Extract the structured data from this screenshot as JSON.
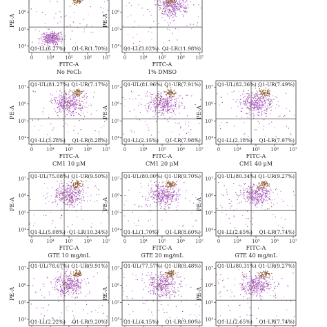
{
  "chart_data": [
    {
      "type": "scatter",
      "caption": "No FeCl₃",
      "xlabel": "FITC-A",
      "ylabel": "PE-A",
      "quadrants": {
        "UL": "",
        "UR": "",
        "LL": "Q1-LL(6.27%)",
        "LR": "Q1-LR(1.70%)"
      },
      "x_ticks": [
        "0",
        "10⁴",
        "10⁵",
        "10⁶",
        "10⁷"
      ],
      "y_ticks": [
        "10⁴",
        "10⁵",
        "10⁶",
        "10⁷"
      ],
      "dominant_population": "LL"
    },
    {
      "type": "scatter",
      "caption": "1% DMSO",
      "xlabel": "FITC-A",
      "ylabel": "PE-A",
      "quadrants": {
        "UL": "",
        "UR": "",
        "LL": "Q1-LL(3.02%)",
        "LR": "Q1-LR(11.98%)"
      },
      "x_ticks": [
        "0",
        "10⁴",
        "10⁵",
        "10⁶",
        "10⁷"
      ],
      "y_ticks": [
        "10⁴",
        "10⁵",
        "10⁶",
        "10⁷"
      ],
      "dominant_population": "UR"
    },
    {
      "type": "scatter",
      "caption": "CM1 10 μM",
      "xlabel": "FITC-A",
      "ylabel": "PE-A",
      "quadrants": {
        "UL": "Q1-UL(81.27%)",
        "UR": "Q1-UR(7.17%)",
        "LL": "Q1-LL(3.28%)",
        "LR": "Q1-LR(8.28%)"
      },
      "x_ticks": [
        "0",
        "10⁴",
        "10⁵",
        "10⁶",
        "10⁷"
      ],
      "y_ticks": [
        "10⁴",
        "10⁵",
        "10⁶",
        "10⁷"
      ],
      "dominant_population": "UL"
    },
    {
      "type": "scatter",
      "caption": "CM1 20 μM",
      "xlabel": "FITC-A",
      "ylabel": "PE-A",
      "quadrants": {
        "UL": "Q1-UL(81.96%)",
        "UR": "Q1-UR(7.91%)",
        "LL": "Q1-LL(2.15%)",
        "LR": "Q1-LR(7.98%)"
      },
      "x_ticks": [
        "0",
        "10⁴",
        "10⁵",
        "10⁶",
        "10⁷"
      ],
      "y_ticks": [
        "10⁴",
        "10⁵",
        "10⁶",
        "10⁷"
      ],
      "dominant_population": "UL"
    },
    {
      "type": "scatter",
      "caption": "CM1 40 μM",
      "xlabel": "FITC-A",
      "ylabel": "PE-A",
      "quadrants": {
        "UL": "Q1-UL(82.36%)",
        "UR": "Q1-UR(7.49%)",
        "LL": "Q1-LL(2.18%)",
        "LR": "Q1-LR(7.97%)"
      },
      "x_ticks": [
        "0",
        "10⁴",
        "10⁵",
        "10⁶",
        "10⁷"
      ],
      "y_ticks": [
        "10⁴",
        "10⁵",
        "10⁶",
        "10⁷"
      ],
      "dominant_population": "UL"
    },
    {
      "type": "scatter",
      "caption": "GTE 10 mg/mL",
      "xlabel": "FITC-A",
      "ylabel": "PE-A",
      "quadrants": {
        "UL": "Q1-UL(75.08%)",
        "UR": "Q1-UR(9.50%)",
        "LL": "Q1-LL(5.08%)",
        "LR": "Q1-LR(10.34%)"
      },
      "x_ticks": [
        "0",
        "10⁴",
        "10⁵",
        "10⁶",
        "10⁷"
      ],
      "y_ticks": [
        "10⁴",
        "10⁵",
        "10⁶",
        "10⁷"
      ],
      "dominant_population": "UL"
    },
    {
      "type": "scatter",
      "caption": "GTE 20 mg/mL",
      "xlabel": "FITC-A",
      "ylabel": "PE-A",
      "quadrants": {
        "UL": "Q1-UL(80.00%)",
        "UR": "Q1-UR(9.70%)",
        "LL": "Q1-LL(1.70%)",
        "LR": "Q1-LR(8.60%)"
      },
      "x_ticks": [
        "0",
        "10⁴",
        "10⁵",
        "10⁶",
        "10⁷"
      ],
      "y_ticks": [
        "10⁴",
        "10⁵",
        "10⁶",
        "10⁷"
      ],
      "dominant_population": "UL"
    },
    {
      "type": "scatter",
      "caption": "GTE 40 mg/mL",
      "xlabel": "FITC-A",
      "ylabel": "PE-A",
      "quadrants": {
        "UL": "Q1-UL(80.34%)",
        "UR": "Q1-UR(9.27%)",
        "LL": "Q1-LL(2.65%)",
        "LR": "Q1-LR(7.74%)"
      },
      "x_ticks": [
        "0",
        "10⁴",
        "10⁵",
        "10⁶",
        "10⁷"
      ],
      "y_ticks": [
        "10⁴",
        "10⁵",
        "10⁶",
        "10⁷"
      ],
      "dominant_population": "UL"
    },
    {
      "type": "scatter",
      "caption": "",
      "xlabel": "",
      "ylabel": "PE-A",
      "quadrants": {
        "UL": "Q1-UL(78.67%)",
        "UR": "Q1-UR(9.91%)",
        "LL": "Q1-LL(2.22%)",
        "LR": "Q1-LR(9.20%)"
      },
      "x_ticks": [
        "0",
        "10⁴",
        "10⁵",
        "10⁶",
        "10⁷"
      ],
      "y_ticks": [
        "10⁴",
        "10⁵",
        "10⁶",
        "10⁷"
      ],
      "dominant_population": "UL"
    },
    {
      "type": "scatter",
      "caption": "",
      "xlabel": "",
      "ylabel": "PE-A",
      "quadrants": {
        "UL": "Q1-UL(77.57%)",
        "UR": "Q1-UR(8.48%)",
        "LL": "Q1-LL(4.15%)",
        "LR": "Q1-LR(9.80%)"
      },
      "x_ticks": [
        "0",
        "10⁴",
        "10⁵",
        "10⁶",
        "10⁷"
      ],
      "y_ticks": [
        "10⁴",
        "10⁵",
        "10⁶",
        "10⁷"
      ],
      "dominant_population": "UL"
    },
    {
      "type": "scatter",
      "caption": "",
      "xlabel": "",
      "ylabel": "PE-A",
      "quadrants": {
        "UL": "Q1-UL(80.31%)",
        "UR": "Q1-UR(9.27%)",
        "LL": "Q1-LL(2.65%)",
        "LR": "Q1-LR(7.74%)"
      },
      "x_ticks": [
        "0",
        "10⁴",
        "10⁵",
        "10⁶",
        "10⁷"
      ],
      "y_ticks": [
        "10⁴",
        "10⁵",
        "10⁶",
        "10⁷"
      ],
      "dominant_population": "UL"
    }
  ],
  "colors": {
    "dot_primary": "#a24fc0",
    "dot_secondary": "#c98be0",
    "dot_accent": "#8a5a2a",
    "axis": "#333333",
    "gate": "#555555"
  }
}
